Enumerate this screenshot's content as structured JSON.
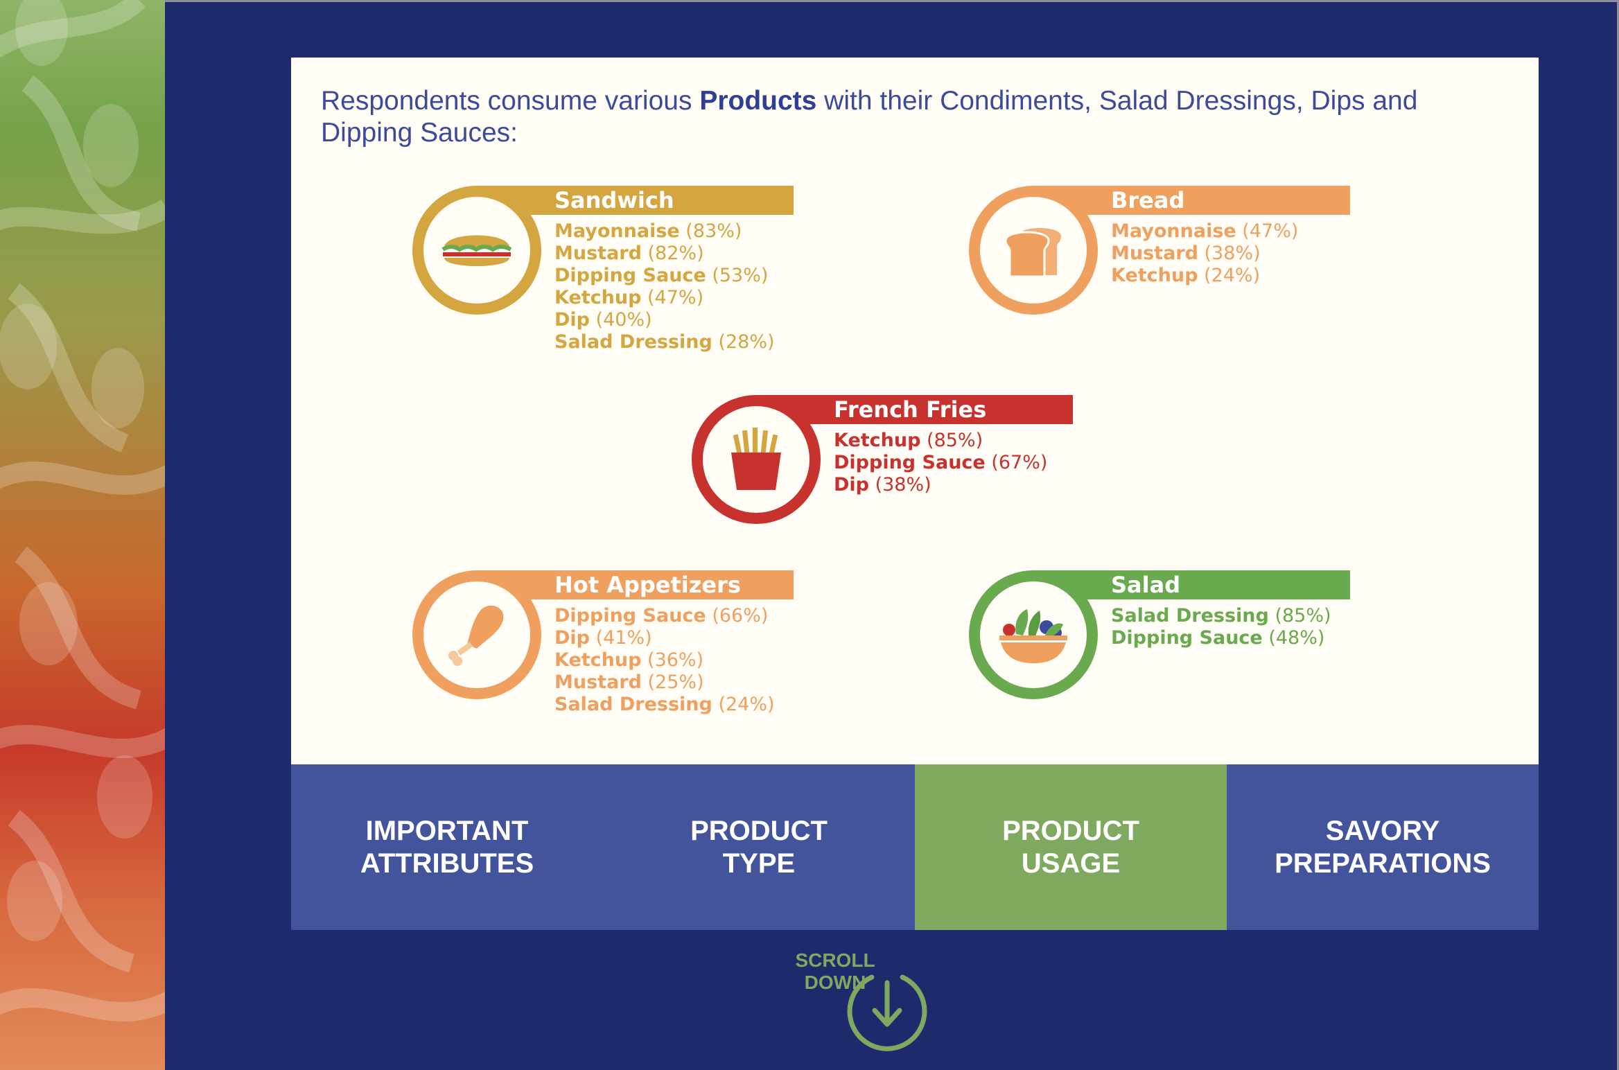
{
  "headline": {
    "prefix": "Respondents consume various ",
    "bold": "Products",
    "suffix": " with their Condiments, Salad Dressings, Dips and Dipping Sauces:"
  },
  "products": [
    {
      "name": "Sandwich",
      "color": "#d4a640",
      "icon": "sandwich-icon",
      "items": [
        {
          "label": "Mayonnaise",
          "pct": "(83%)"
        },
        {
          "label": "Mustard",
          "pct": "(82%)"
        },
        {
          "label": "Dipping Sauce",
          "pct": "(53%)"
        },
        {
          "label": "Ketchup",
          "pct": "(47%)"
        },
        {
          "label": "Dip",
          "pct": "(40%)"
        },
        {
          "label": "Salad Dressing",
          "pct": "(28%)"
        }
      ]
    },
    {
      "name": "Bread",
      "color": "#f0a05e",
      "icon": "bread-icon",
      "items": [
        {
          "label": "Mayonnaise",
          "pct": "(47%)"
        },
        {
          "label": "Mustard",
          "pct": "(38%)"
        },
        {
          "label": "Ketchup",
          "pct": "(24%)"
        }
      ]
    },
    {
      "name": "French Fries",
      "color": "#c8322e",
      "icon": "french-fries-icon",
      "items": [
        {
          "label": "Ketchup",
          "pct": "(85%)"
        },
        {
          "label": "Dipping Sauce",
          "pct": "(67%)"
        },
        {
          "label": "Dip",
          "pct": "(38%)"
        }
      ]
    },
    {
      "name": "Hot Appetizers",
      "color": "#f0a05e",
      "icon": "chicken-leg-icon",
      "items": [
        {
          "label": "Dipping Sauce",
          "pct": "(66%)"
        },
        {
          "label": "Dip",
          "pct": "(41%)"
        },
        {
          "label": "Ketchup",
          "pct": "(36%)"
        },
        {
          "label": "Mustard",
          "pct": "(25%)"
        },
        {
          "label": "Salad Dressing",
          "pct": "(24%)"
        }
      ]
    },
    {
      "name": "Salad",
      "color": "#6aaa4e",
      "icon": "salad-bowl-icon",
      "items": [
        {
          "label": "Salad Dressing",
          "pct": "(85%)"
        },
        {
          "label": "Dipping Sauce",
          "pct": "(48%)"
        }
      ]
    }
  ],
  "nav": [
    {
      "label": "IMPORTANT\nATTRIBUTES",
      "active": false
    },
    {
      "label": "PRODUCT\nTYPE",
      "active": false
    },
    {
      "label": "PRODUCT\nUSAGE",
      "active": true
    },
    {
      "label": "SAVORY\nPREPARATIONS",
      "active": false
    }
  ],
  "scroll": {
    "label": "SCROLL\nDOWN",
    "icon": "arrow-down-circle-icon"
  },
  "colors": {
    "background": "#1e2a6b",
    "card": "#fffdf5",
    "nav": "#44549c",
    "nav_active": "#7fa95e",
    "headline": "#3b4a9a"
  }
}
